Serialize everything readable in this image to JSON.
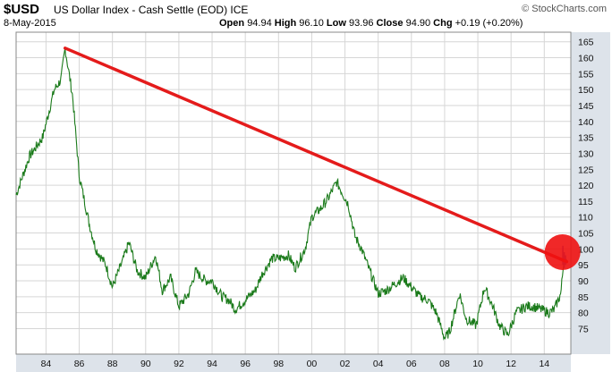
{
  "header": {
    "symbol": "$USD",
    "name": "US Dollar Index - Cash Settle (EOD)",
    "exchange": "ICE",
    "watermark": "© StockCharts.com",
    "date": "8-May-2015",
    "open_label": "Open",
    "open": "94.94",
    "high_label": "High",
    "high": "96.10",
    "low_label": "Low",
    "low": "93.96",
    "close_label": "Close",
    "close": "94.90",
    "chg_label": "Chg",
    "chg": "+0.19 (+0.20%)"
  },
  "colors": {
    "price": "#1a7a1a",
    "trendline": "#e41b1b",
    "highlight": "#ee1111",
    "recent_bars": "#4466dd",
    "grid": "#d6d6d6",
    "axis_panel": "#dde3ea"
  },
  "chart_data": {
    "type": "line",
    "title": "$USD US Dollar Index - Cash Settle (EOD)",
    "xlabel": "",
    "ylabel": "",
    "xlim": [
      1982.2,
      2015.6
    ],
    "ylim": [
      67,
      168
    ],
    "x_ticks": [
      1984,
      1986,
      1988,
      1990,
      1992,
      1994,
      1996,
      1998,
      2000,
      2002,
      2004,
      2006,
      2008,
      2010,
      2012,
      2014
    ],
    "x_tick_labels": [
      "84",
      "86",
      "88",
      "90",
      "92",
      "94",
      "96",
      "98",
      "00",
      "02",
      "04",
      "06",
      "08",
      "10",
      "12",
      "14"
    ],
    "y_ticks": [
      75,
      80,
      85,
      90,
      95,
      100,
      105,
      110,
      115,
      120,
      125,
      130,
      135,
      140,
      145,
      150,
      155,
      160,
      165
    ],
    "grid": true,
    "series": [
      {
        "name": "$USD",
        "x": [
          1982.2,
          1983.0,
          1983.8,
          1984.5,
          1984.9,
          1985.15,
          1985.6,
          1986.0,
          1986.6,
          1987.0,
          1987.6,
          1988.0,
          1988.6,
          1989.0,
          1989.5,
          1990.0,
          1990.6,
          1991.0,
          1991.5,
          1992.0,
          1992.6,
          1993.0,
          1993.6,
          1994.0,
          1994.6,
          1995.0,
          1995.4,
          1996.0,
          1996.6,
          1997.0,
          1997.6,
          1998.0,
          1998.6,
          1999.0,
          1999.6,
          2000.0,
          2000.6,
          2001.0,
          2001.5,
          2001.8,
          2002.2,
          2002.6,
          2003.0,
          2003.5,
          2004.0,
          2004.5,
          2005.0,
          2005.5,
          2006.0,
          2006.5,
          2007.0,
          2007.5,
          2008.0,
          2008.3,
          2008.9,
          2009.3,
          2009.9,
          2010.4,
          2010.9,
          2011.3,
          2011.8,
          2012.3,
          2012.9,
          2013.3,
          2013.8,
          2014.3,
          2014.6,
          2015.0,
          2015.2,
          2015.35
        ],
        "values": [
          117,
          129,
          135,
          150,
          153,
          163,
          148,
          123,
          108,
          100,
          95,
          88,
          96,
          102,
          93,
          91,
          98,
          87,
          91,
          82,
          86,
          93,
          90,
          90,
          85,
          84,
          81,
          84,
          87,
          92,
          97,
          97,
          98,
          94,
          100,
          110,
          113,
          116,
          121,
          118,
          114,
          104,
          100,
          93,
          86,
          87,
          89,
          91,
          88,
          85,
          84,
          80,
          72,
          74,
          86,
          78,
          76,
          88,
          82,
          76,
          73,
          80,
          82,
          82,
          81,
          80,
          81,
          86,
          98,
          95
        ]
      },
      {
        "name": "Trendline",
        "x": [
          1985.15,
          2015.35
        ],
        "values": [
          163,
          96
        ]
      }
    ],
    "annotations": [
      {
        "type": "circle",
        "x": 2015.1,
        "y": 99,
        "color": "#ee1111"
      }
    ]
  }
}
